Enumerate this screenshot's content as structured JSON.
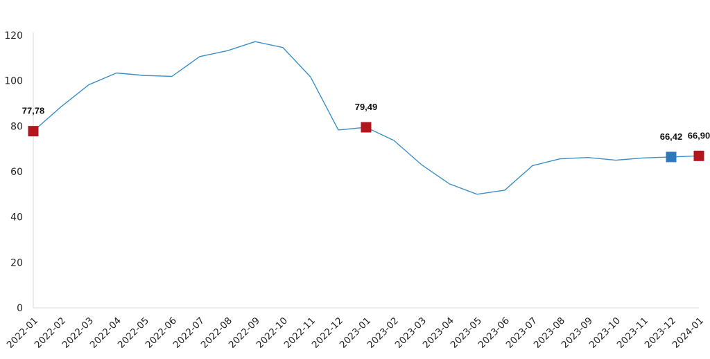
{
  "chart_data": {
    "type": "line",
    "title": "",
    "xlabel": "",
    "ylabel": "",
    "ylim": [
      0,
      120
    ],
    "yticks": [
      0,
      20,
      40,
      60,
      80,
      100,
      120
    ],
    "grid": false,
    "legend": "none",
    "x": [
      "2022-01",
      "2022-02",
      "2022-03",
      "2022-04",
      "2022-05",
      "2022-06",
      "2022-07",
      "2022-08",
      "2022-09",
      "2022-10",
      "2022-11",
      "2022-12",
      "2023-01",
      "2023-02",
      "2023-03",
      "2023-04",
      "2023-05",
      "2023-06",
      "2023-07",
      "2023-08",
      "2023-09",
      "2023-10",
      "2023-11",
      "2023-12",
      "2024-01"
    ],
    "series": [
      {
        "values": [
          77.78,
          88.5,
          98.2,
          103.4,
          102.3,
          101.9,
          110.6,
          113.2,
          117.2,
          114.6,
          101.6,
          78.3,
          79.49,
          73.7,
          63.0,
          54.6,
          50.0,
          51.8,
          62.6,
          65.6,
          66.2,
          65.0,
          66.0,
          66.42,
          66.9
        ],
        "color": "#3a8fc8"
      }
    ],
    "markers": [
      {
        "x": "2022-01",
        "y": 77.78,
        "label": "77,78",
        "color": "#b3161d"
      },
      {
        "x": "2023-01",
        "y": 79.49,
        "label": "79,49",
        "color": "#b3161d"
      },
      {
        "x": "2023-12",
        "y": 66.42,
        "label": "66,42",
        "color": "#2f78ba"
      },
      {
        "x": "2024-01",
        "y": 66.9,
        "label": "66,90",
        "color": "#b3161d"
      }
    ],
    "axis_color": "#d9d9d9"
  }
}
